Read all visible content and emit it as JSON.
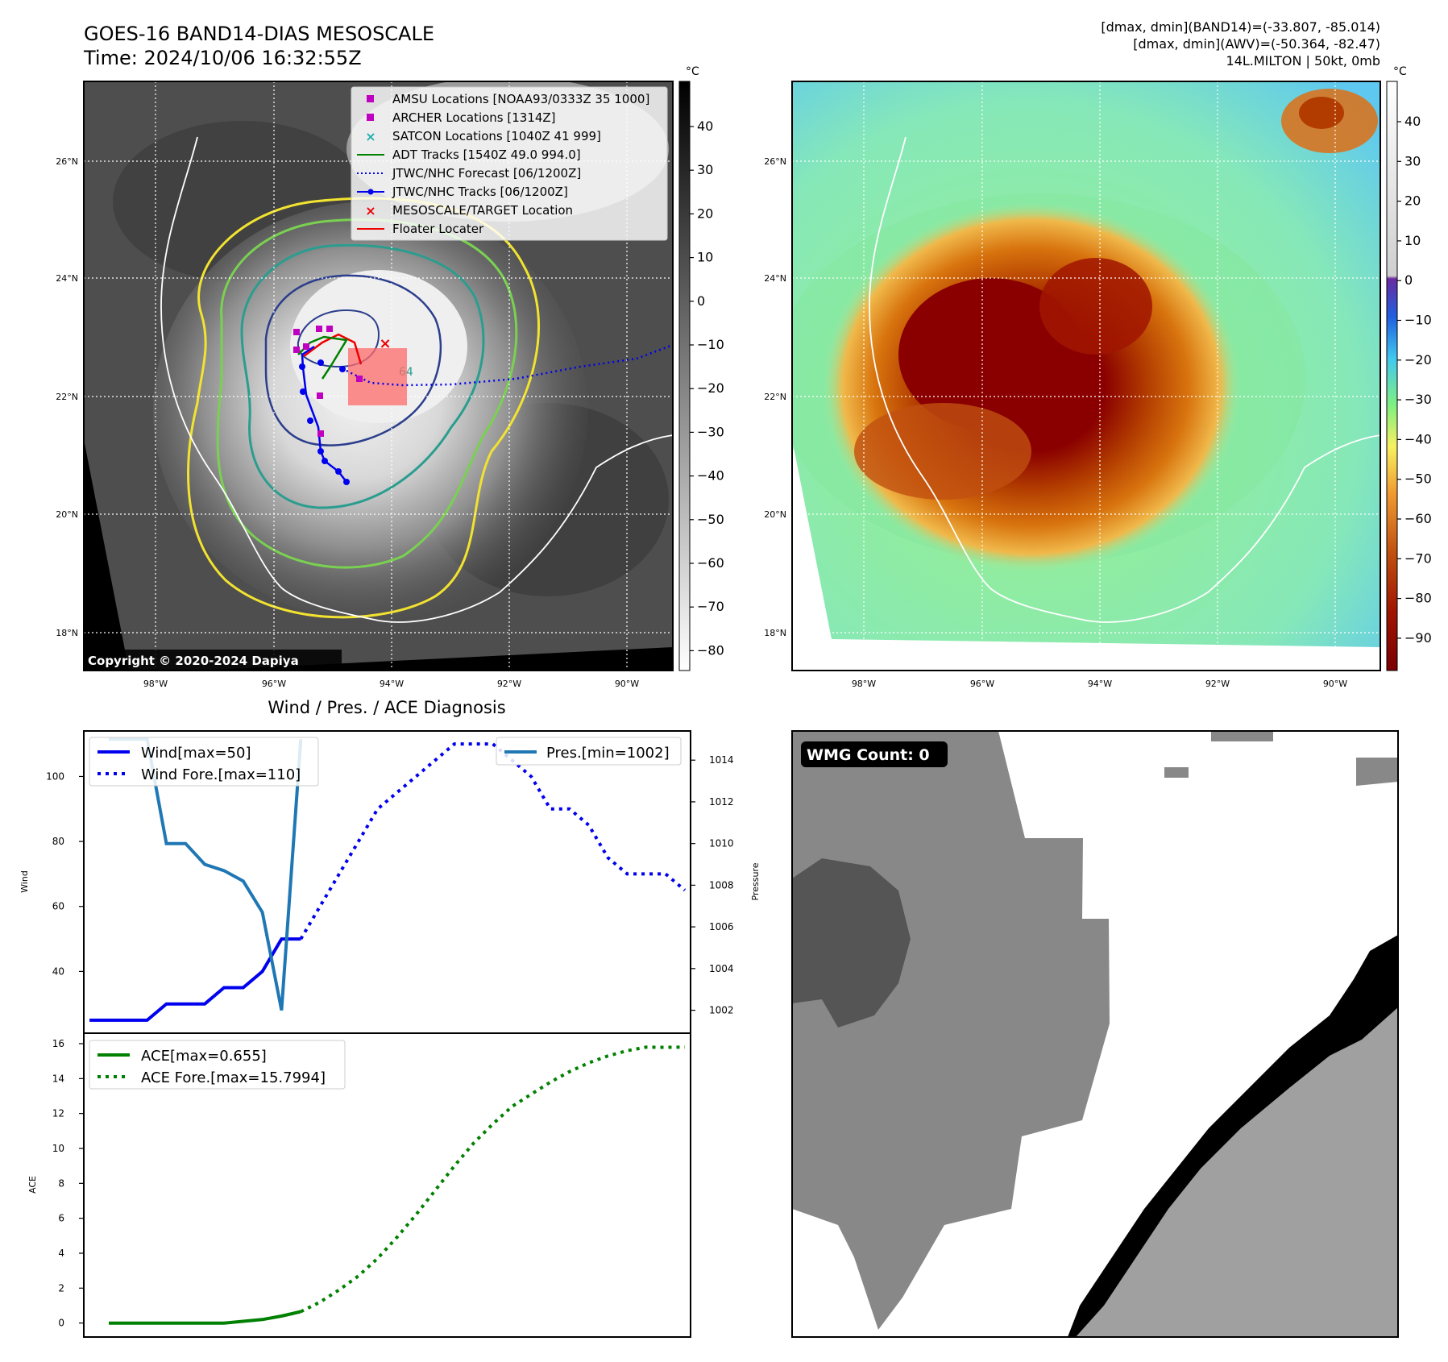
{
  "header": {
    "title_line1": "GOES-16 BAND14-DIAS MESOSCALE",
    "title_line2": "Time: 2024/10/06 16:32:55Z",
    "stats_line1": "[dmax, dmin](BAND14)=(-33.807, -85.014)",
    "stats_line2": "[dmax, dmin](AWV)=(-50.364, -82.47)",
    "stats_line3": "14L.MILTON | 50kt, 0mb"
  },
  "map_axes": {
    "lat_labels": [
      "26°N",
      "24°N",
      "22°N",
      "20°N",
      "18°N"
    ],
    "lon_labels": [
      "98°W",
      "96°W",
      "94°W",
      "92°W",
      "90°W"
    ]
  },
  "ir_panel": {
    "colorbar_unit": "°C",
    "colorbar_ticks": [
      "40",
      "30",
      "20",
      "10",
      "0",
      "−10",
      "−20",
      "−30",
      "−40",
      "−50",
      "−60",
      "−70",
      "−80"
    ],
    "copyright": "Copyright © 2020-2024 Dapiya",
    "legend": [
      {
        "label": "AMSU Locations [NOAA93/0333Z 35 1000]",
        "marker": "square",
        "color": "#c000c0"
      },
      {
        "label": "ARCHER Locations [1314Z]",
        "marker": "square",
        "color": "#c000c0"
      },
      {
        "label": "SATCON Locations [1040Z 41 999]",
        "marker": "x",
        "color": "#20b0b0"
      },
      {
        "label": "ADT Tracks [1540Z 49.0 994.0]",
        "marker": "line",
        "color": "#008000"
      },
      {
        "label": "JTWC/NHC Forecast [06/1200Z]",
        "marker": "dotted",
        "color": "#0000ee"
      },
      {
        "label": "JTWC/NHC Tracks [06/1200Z]",
        "marker": "line-dot",
        "color": "#0000ee"
      },
      {
        "label": "MESOSCALE/TARGET Location",
        "marker": "x",
        "color": "#ee0000"
      },
      {
        "label": "Floater Locater",
        "marker": "line",
        "color": "#ee0000"
      }
    ],
    "contour_label": "64"
  },
  "awv_panel": {
    "colorbar_unit": "°C",
    "colorbar_ticks": [
      "40",
      "30",
      "20",
      "10",
      "0",
      "−10",
      "−20",
      "−30",
      "−40",
      "−50",
      "−60",
      "−70",
      "−80",
      "−90"
    ]
  },
  "wmg_panel": {
    "badge": "WMG Count: 0"
  },
  "colors": {
    "wind": "#0000ee",
    "pressure": "#1f77b4",
    "ace": "#008000",
    "contour_yellow": "#f2e330",
    "contour_green": "#7ad151",
    "contour_teal": "#2a9d8f",
    "contour_navy": "#2c3e8c"
  },
  "chart_data": [
    {
      "type": "line",
      "title": "Wind / Pres. / ACE Diagnosis",
      "ylabel": "Wind",
      "ylabel_right": "Pressure",
      "ylim": [
        21,
        114
      ],
      "ylim_right": [
        1000.9,
        1015.4
      ],
      "yticks": [
        40,
        60,
        80,
        100
      ],
      "yticks_right": [
        1002,
        1004,
        1006,
        1008,
        1010,
        1012,
        1014
      ],
      "series": [
        {
          "name": "Wind[max=50]",
          "style": "solid",
          "axis": "left",
          "x": [
            0,
            1,
            2,
            3,
            4,
            5,
            6,
            7,
            8,
            9,
            10,
            11
          ],
          "values": [
            25,
            25,
            25,
            25,
            30,
            30,
            30,
            35,
            35,
            40,
            50,
            50
          ]
        },
        {
          "name": "Wind Fore.[max=110]",
          "style": "dotted",
          "axis": "left",
          "x": [
            11,
            12,
            13,
            14,
            15,
            16,
            17,
            18,
            19,
            20,
            21,
            22,
            23,
            24,
            25,
            26,
            27,
            28,
            29,
            30,
            31
          ],
          "values": [
            50,
            60,
            70,
            80,
            90,
            95,
            100,
            105,
            110,
            110,
            110,
            105,
            100,
            90,
            90,
            85,
            75,
            70,
            70,
            70,
            65
          ]
        },
        {
          "name": "Pres.[min=1002]",
          "style": "solid",
          "axis": "right",
          "x": [
            1,
            2,
            3,
            4,
            5,
            6,
            7,
            8,
            9,
            10,
            11
          ],
          "values": [
            1015,
            1015,
            1015,
            1010,
            1010,
            1009,
            1008.7,
            1008.2,
            1006.7,
            1002,
            1015
          ]
        }
      ]
    },
    {
      "type": "line",
      "ylabel": "ACE",
      "ylim": [
        -0.8,
        16.6
      ],
      "yticks": [
        0,
        2,
        4,
        6,
        8,
        10,
        12,
        14,
        16
      ],
      "series": [
        {
          "name": "ACE[max=0.655]",
          "style": "solid",
          "x": [
            1,
            2,
            3,
            4,
            5,
            6,
            7,
            8,
            9,
            10,
            11
          ],
          "values": [
            0,
            0,
            0,
            0,
            0,
            0,
            0,
            0.1,
            0.2,
            0.4,
            0.655
          ]
        },
        {
          "name": "ACE Fore.[max=15.7994]",
          "style": "dotted",
          "x": [
            11,
            12,
            13,
            14,
            15,
            16,
            17,
            18,
            19,
            20,
            21,
            22,
            23,
            24,
            25,
            26,
            27,
            28,
            29,
            30,
            31
          ],
          "values": [
            0.655,
            1.2,
            1.9,
            2.7,
            3.7,
            4.9,
            6.2,
            7.6,
            9.0,
            10.3,
            11.4,
            12.4,
            13.1,
            13.8,
            14.4,
            14.9,
            15.3,
            15.6,
            15.8,
            15.79,
            15.7994
          ]
        }
      ]
    }
  ]
}
